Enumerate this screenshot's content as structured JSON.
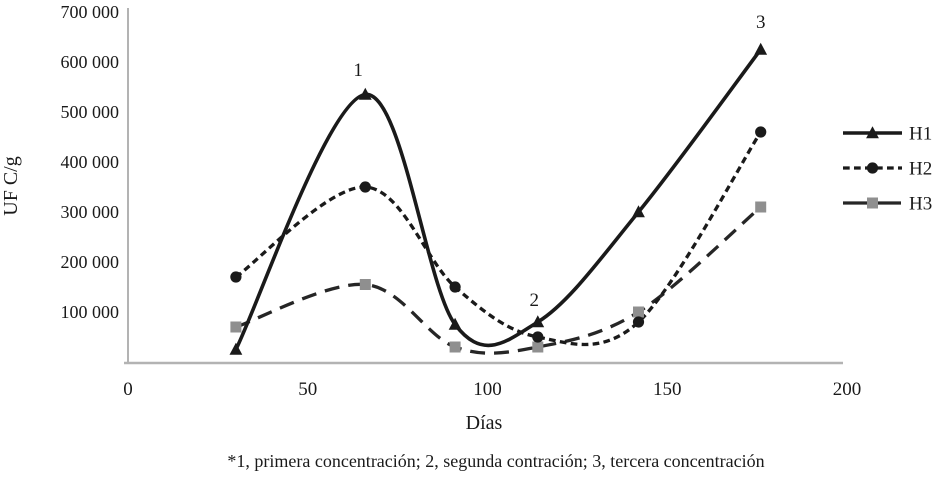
{
  "figure": {
    "caption": "*1, primera concentración; 2, segunda contración; 3, tercera concentración"
  },
  "chart_data": {
    "type": "line",
    "title": "",
    "xlabel": "Días",
    "ylabel": "UF C/g",
    "xlim": [
      0,
      200
    ],
    "ylim": [
      0,
      700000
    ],
    "x_ticks": [
      0,
      50,
      100,
      150,
      200
    ],
    "y_ticks": [
      100000,
      200000,
      300000,
      400000,
      500000,
      600000,
      700000
    ],
    "y_tick_labels": [
      "100 000",
      "200 000",
      "300 000",
      "400 000",
      "500 000",
      "600 000",
      "700 000"
    ],
    "grid": false,
    "legend_position": "right",
    "axis_color": "#b3b3b3",
    "x": [
      30,
      66,
      91,
      114,
      142,
      176
    ],
    "series": [
      {
        "name": "H1",
        "line": "solid",
        "marker": "triangle",
        "color": "#1a1a1a",
        "marker_color": "#1a1a1a",
        "values": [
          25000,
          535000,
          75000,
          80000,
          300000,
          625000
        ]
      },
      {
        "name": "H2",
        "line": "short-dash",
        "marker": "circle",
        "color": "#1a1a1a",
        "marker_color": "#1a1a1a",
        "values": [
          170000,
          350000,
          150000,
          50000,
          80000,
          460000
        ]
      },
      {
        "name": "H3",
        "line": "long-dash",
        "marker": "square",
        "color": "#262626",
        "marker_color": "#8f8f8f",
        "values": [
          70000,
          155000,
          30000,
          30000,
          100000,
          310000
        ]
      }
    ],
    "annotations": [
      {
        "text": "1",
        "x": 64,
        "y": 584000
      },
      {
        "text": "2",
        "x": 113,
        "y": 124000
      },
      {
        "text": "3",
        "x": 176,
        "y": 680000
      }
    ]
  }
}
